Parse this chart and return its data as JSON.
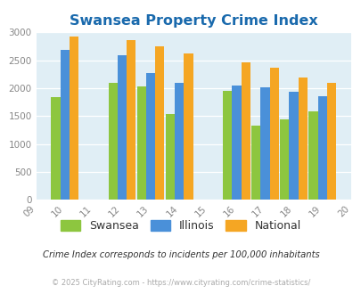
{
  "title": "Swansea Property Crime Index",
  "all_years": [
    2009,
    2010,
    2011,
    2012,
    2013,
    2014,
    2015,
    2016,
    2017,
    2018,
    2019,
    2020
  ],
  "all_year_labels": [
    "09",
    "10",
    "11",
    "12",
    "13",
    "14",
    "15",
    "16",
    "17",
    "18",
    "19",
    "20"
  ],
  "data_years": [
    2010,
    2012,
    2013,
    2014,
    2016,
    2017,
    2018,
    2019
  ],
  "swansea": [
    1840,
    2090,
    2030,
    1540,
    1960,
    1330,
    1440,
    1590
  ],
  "illinois": [
    2680,
    2590,
    2270,
    2090,
    2050,
    2010,
    1940,
    1850
  ],
  "national": [
    2930,
    2860,
    2750,
    2620,
    2470,
    2360,
    2190,
    2090
  ],
  "swansea_color": "#8dc63f",
  "illinois_color": "#4a90d9",
  "national_color": "#f5a623",
  "plot_bg": "#e0eef5",
  "ylim": [
    0,
    3000
  ],
  "yticks": [
    0,
    500,
    1000,
    1500,
    2000,
    2500,
    3000
  ],
  "title_color": "#1a6aad",
  "title_fontsize": 11.5,
  "footer_note": "Crime Index corresponds to incidents per 100,000 inhabitants",
  "copyright": "© 2025 CityRating.com - https://www.cityrating.com/crime-statistics/",
  "legend_labels": [
    "Swansea",
    "Illinois",
    "National"
  ],
  "bar_width": 0.32
}
